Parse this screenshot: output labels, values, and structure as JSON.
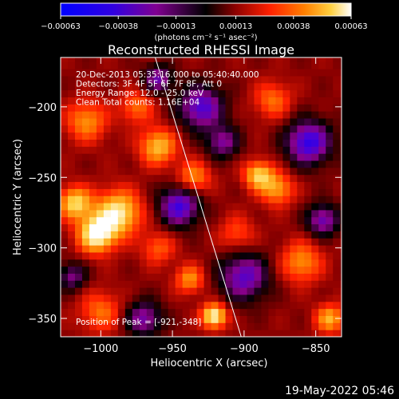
{
  "chart_data": {
    "type": "heatmap",
    "title": "Reconstructed RHESSI Image",
    "xlabel": "Heliocentric X (arcsec)",
    "ylabel": "Heliocentric Y (arcsec)",
    "xlim": [
      -1028,
      -832
    ],
    "ylim": [
      -363,
      -165
    ],
    "x_ticks": [
      -1000,
      -950,
      -900,
      -850
    ],
    "y_ticks": [
      -200,
      -250,
      -300,
      -350
    ],
    "x_tick_labels": [
      "−1000",
      "−950",
      "−900",
      "−850"
    ],
    "y_tick_labels": [
      "−200",
      "−250",
      "−300",
      "−350"
    ],
    "colorbar": {
      "range": [
        -0.00063,
        0.00063
      ],
      "ticks": [
        -0.00063,
        -0.00038,
        -0.00013,
        0.00013,
        0.00038,
        0.00063
      ],
      "tick_labels": [
        "−0.00063",
        "−0.00038",
        "−0.00013",
        "0.00013",
        "0.00038",
        "0.00063"
      ],
      "unit_label": "(photons cm⁻² s⁻¹ asec⁻²)",
      "colors": [
        "#0000ff",
        "#4b00d8",
        "#880088",
        "#000000",
        "#8b0000",
        "#ff2000",
        "#ff8000",
        "#ffd040",
        "#ffffff"
      ]
    },
    "info_lines": [
      "20-Dec-2013 05:35:16.000 to 05:40:40.000",
      "Detectors: 3F 4F 5F 6F 7F 8F, Att 0",
      "Energy Range: 12.0 - 25.0 keV",
      "Clean     Total counts: 1.16E+04"
    ],
    "peak_label": "Position of Peak = [-921,-348]",
    "peak": [
      -921,
      -348
    ],
    "limb_line": [
      [
        -962,
        -165
      ],
      [
        -902,
        -363
      ]
    ],
    "hot_spots": [
      {
        "x": -1003,
        "y": -290,
        "amp": 1.0,
        "r": 9
      },
      {
        "x": -988,
        "y": -275,
        "amp": 0.9,
        "r": 11
      },
      {
        "x": -1018,
        "y": -268,
        "amp": 0.8,
        "r": 8
      },
      {
        "x": -960,
        "y": -228,
        "amp": 0.7,
        "r": 9
      },
      {
        "x": -890,
        "y": -248,
        "amp": 0.75,
        "r": 7
      },
      {
        "x": -877,
        "y": -258,
        "amp": 0.6,
        "r": 8
      },
      {
        "x": -921,
        "y": -348,
        "amp": 1.0,
        "r": 6
      },
      {
        "x": -938,
        "y": -322,
        "amp": 0.55,
        "r": 7
      },
      {
        "x": -935,
        "y": -250,
        "amp": 0.55,
        "r": 8
      },
      {
        "x": -1010,
        "y": -210,
        "amp": 0.55,
        "r": 10
      },
      {
        "x": -975,
        "y": -200,
        "amp": 0.45,
        "r": 8
      },
      {
        "x": -860,
        "y": -310,
        "amp": 0.55,
        "r": 10
      },
      {
        "x": -840,
        "y": -350,
        "amp": 0.65,
        "r": 7
      },
      {
        "x": -880,
        "y": -195,
        "amp": 0.45,
        "r": 9
      },
      {
        "x": -1000,
        "y": -345,
        "amp": 0.45,
        "r": 10
      },
      {
        "x": -960,
        "y": -300,
        "amp": 0.4,
        "r": 8
      },
      {
        "x": -905,
        "y": -290,
        "amp": 0.35,
        "r": 9
      },
      {
        "x": -945,
        "y": -270,
        "amp": -0.8,
        "r": 10
      },
      {
        "x": -930,
        "y": -200,
        "amp": -0.75,
        "r": 11
      },
      {
        "x": -855,
        "y": -225,
        "amp": -0.85,
        "r": 11
      },
      {
        "x": -900,
        "y": -320,
        "amp": -0.7,
        "r": 12
      },
      {
        "x": -970,
        "y": -350,
        "amp": -0.6,
        "r": 9
      },
      {
        "x": -1020,
        "y": -320,
        "amp": -0.5,
        "r": 7
      },
      {
        "x": -960,
        "y": -180,
        "amp": -0.6,
        "r": 7
      },
      {
        "x": -845,
        "y": -280,
        "amp": -0.65,
        "r": 8
      },
      {
        "x": -915,
        "y": -225,
        "amp": -0.55,
        "r": 8
      }
    ]
  },
  "footer": {
    "date": "19-May-2022 05:46"
  }
}
